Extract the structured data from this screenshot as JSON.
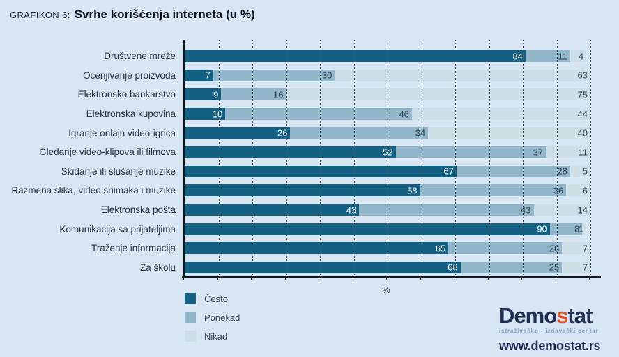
{
  "title": {
    "prefix": "GRAFIKON 6:",
    "main": "Svrhe korišćenja interneta (u %)"
  },
  "chart_data": {
    "type": "bar",
    "orientation": "horizontal-stacked",
    "title": "GRAFIKON 6: Svrhe korišćenja interneta (u %)",
    "categories": [
      "Društvene mreže",
      "Ocenjivanje proizvoda",
      "Elektronsko bankarstvo",
      "Elektronska kupovina",
      "Igranje onlajn video-igrica",
      "Gledanje video-klipova ili filmova",
      "Skidanje ili slušanje muzike",
      "Razmena slika, video snimaka i muzike",
      "Elektronska pošta",
      "Komunikacija sa prijateljima",
      "Traženje informacija",
      "Za školu"
    ],
    "series": [
      {
        "name": "Često",
        "color": "#136083",
        "values": [
          84,
          7,
          9,
          10,
          26,
          52,
          67,
          58,
          43,
          90,
          65,
          68
        ]
      },
      {
        "name": "Ponekad",
        "color": "#92b6ca",
        "values": [
          11,
          30,
          16,
          46,
          34,
          37,
          28,
          36,
          43,
          8,
          28,
          25
        ]
      },
      {
        "name": "Nikad",
        "color": "#cfdfe7",
        "values": [
          4,
          63,
          75,
          44,
          40,
          11,
          5,
          6,
          14,
          1,
          7,
          7
        ]
      }
    ],
    "xlabel": "%",
    "xlim": [
      0,
      100
    ],
    "gridlines": {
      "style": "dotted-vertical",
      "divisions": 12
    },
    "legend_position": "bottom-left"
  },
  "colors": {
    "page_background": "#d8e5f2",
    "axis": "#15181c",
    "gridline": "#49565f",
    "value_text_dark_segment": "#ffffff",
    "value_text_light_segment": "#2e3e4b",
    "logo_navy": "#222d52",
    "logo_orange": "#e4512e",
    "logo_subtitle_blue": "#7d9fca"
  },
  "logo": {
    "part1": "Demo",
    "accent": "s",
    "part2": "tat",
    "subtitle": "istraživačko - izdavački centar",
    "url": "www.demostat.rs"
  }
}
